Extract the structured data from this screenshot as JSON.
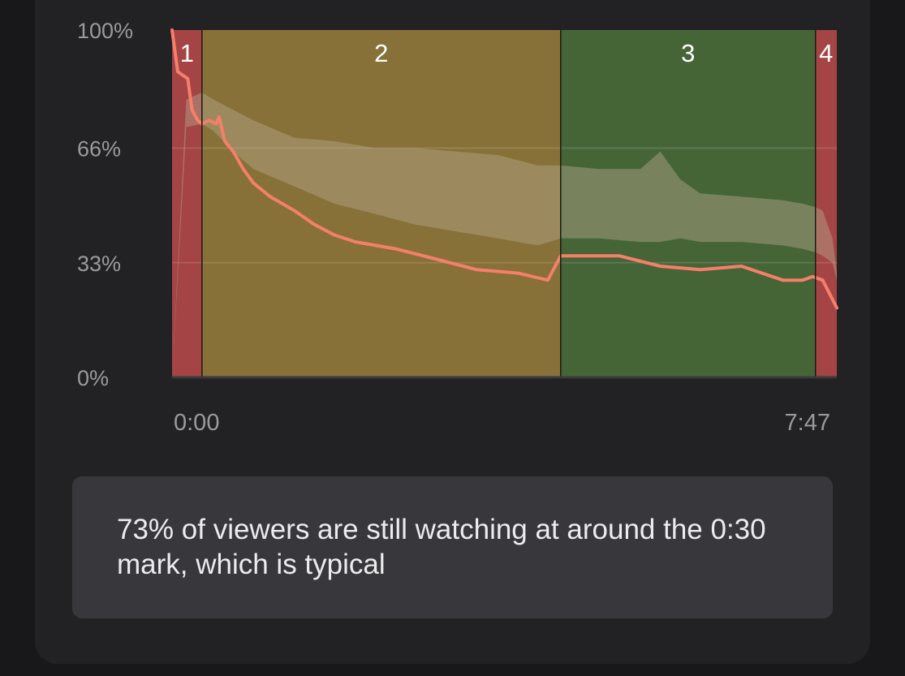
{
  "chart_data": {
    "type": "area",
    "title": "",
    "xlabel": "",
    "ylabel": "",
    "x_tick_labels": [
      "0:00",
      "7:47"
    ],
    "y_tick_labels": [
      "100%",
      "66%",
      "33%",
      "0%"
    ],
    "ylim": [
      0,
      100
    ],
    "xlim_seconds": [
      0,
      467
    ],
    "grid": true,
    "segments": [
      {
        "label": "1",
        "start_seconds": 0,
        "end_seconds": 21,
        "color": "#a44444"
      },
      {
        "label": "2",
        "start_seconds": 21,
        "end_seconds": 273,
        "color": "#877138"
      },
      {
        "label": "3",
        "start_seconds": 273,
        "end_seconds": 452,
        "color": "#456537"
      },
      {
        "label": "4",
        "start_seconds": 452,
        "end_seconds": 467,
        "color": "#a44444"
      }
    ],
    "series": [
      {
        "color": "#f57f6b",
        "x_seconds": [
          0,
          4,
          11,
          14,
          18,
          21,
          26,
          31,
          33,
          37,
          43,
          50,
          57,
          69,
          86,
          100,
          114,
          129,
          157,
          186,
          214,
          243,
          264,
          273,
          286,
          300,
          314,
          343,
          371,
          400,
          429,
          443,
          450,
          457,
          467
        ],
        "values": [
          100,
          88,
          86,
          77,
          74,
          73,
          74,
          73,
          75,
          68,
          65,
          60,
          56,
          52,
          48,
          44,
          41,
          39,
          37,
          34,
          31,
          30,
          28,
          35,
          35,
          35,
          35,
          32,
          31,
          32,
          28,
          28,
          29,
          28,
          20
        ]
      },
      {
        "color": "#b5a88f",
        "band_x_seconds": [
          0,
          10,
          21,
          29,
          43,
          57,
          86,
          114,
          143,
          171,
          200,
          229,
          257,
          273,
          300,
          329,
          343,
          357,
          371,
          400,
          429,
          443,
          452,
          457,
          464,
          467
        ],
        "band_upper": [
          0,
          80,
          82,
          80,
          77,
          74,
          69,
          68,
          66,
          66,
          65,
          64,
          61,
          61,
          60,
          60,
          65,
          57,
          53,
          52,
          51,
          50,
          49,
          48,
          40,
          30
        ],
        "band_lower": [
          0,
          72,
          73,
          71,
          65,
          60,
          55,
          50,
          47,
          44,
          42,
          40,
          38,
          40,
          40,
          39,
          39,
          40,
          39,
          39,
          38,
          37,
          36,
          35,
          33,
          28
        ]
      }
    ]
  },
  "insight": {
    "text": "73% of viewers are still watching at around the 0:30 mark, which is typical"
  }
}
